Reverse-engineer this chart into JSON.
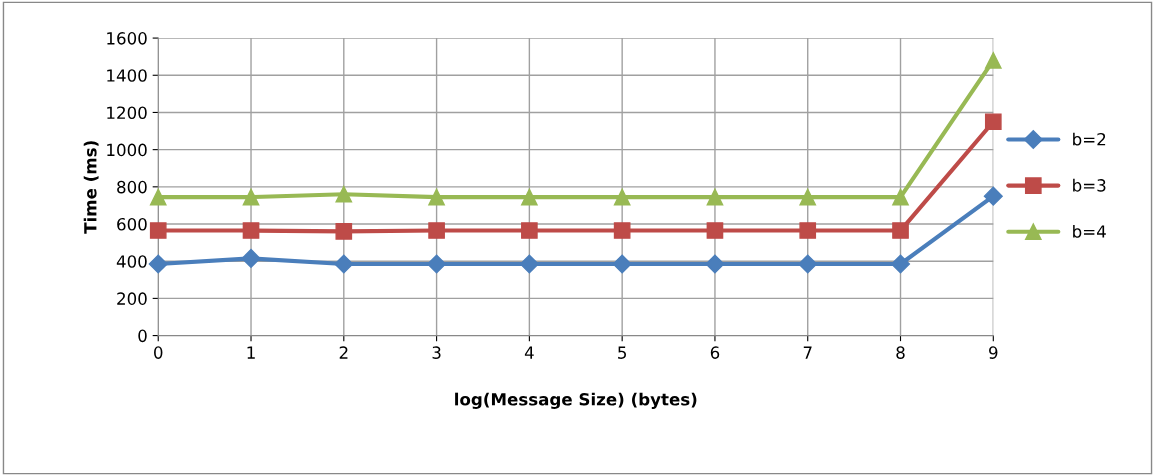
{
  "chart_data": {
    "type": "line",
    "xlabel": "log(Message Size) (bytes)",
    "ylabel": "Time (ms)",
    "x": [
      0,
      1,
      2,
      3,
      4,
      5,
      6,
      7,
      8,
      9
    ],
    "xlim": [
      0,
      9
    ],
    "xticks": [
      0,
      1,
      2,
      3,
      4,
      5,
      6,
      7,
      8,
      9
    ],
    "ylim": [
      0,
      1600
    ],
    "yticks": [
      0,
      200,
      400,
      600,
      800,
      1000,
      1200,
      1400,
      1600
    ],
    "grid": true,
    "legend": "right",
    "line_style": "solid",
    "series": [
      {
        "name": "b=2",
        "color": "#4a7ebb",
        "marker": "diamond",
        "values": [
          385,
          415,
          385,
          385,
          385,
          385,
          385,
          385,
          385,
          750
        ]
      },
      {
        "name": "b=3",
        "color": "#be4b48",
        "marker": "square",
        "values": [
          565,
          565,
          560,
          565,
          565,
          565,
          565,
          565,
          565,
          1150
        ]
      },
      {
        "name": "b=4",
        "color": "#98b954",
        "marker": "triangle",
        "values": [
          745,
          745,
          760,
          745,
          745,
          745,
          745,
          745,
          745,
          1480
        ]
      }
    ]
  }
}
